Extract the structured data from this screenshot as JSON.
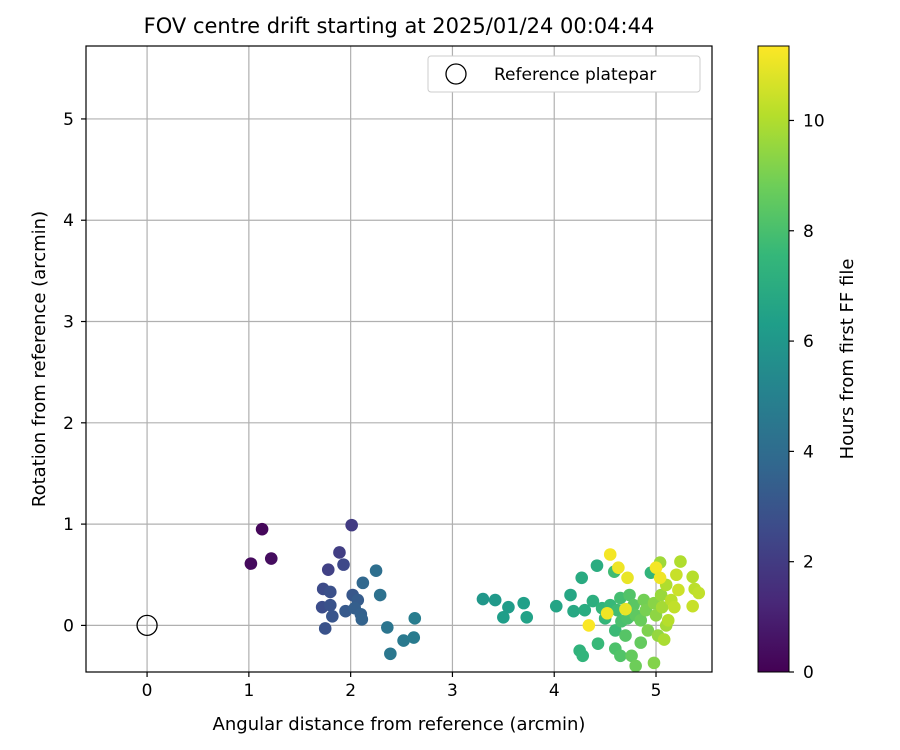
{
  "chart_data": {
    "type": "scatter",
    "title": "FOV centre drift starting at 2025/01/24 00:04:44",
    "xlabel": "Angular distance from reference (arcmin)",
    "ylabel": "Rotation from reference (arcmin)",
    "colorbar_label": "Hours from first FF file",
    "colormap": "viridis",
    "xlim": [
      -0.6,
      5.55
    ],
    "ylim": [
      -0.46,
      5.72
    ],
    "clim": [
      0,
      11.35
    ],
    "x_ticks": [
      0,
      1,
      2,
      3,
      4,
      5
    ],
    "y_ticks": [
      0,
      1,
      2,
      3,
      4,
      5
    ],
    "colorbar_ticks": [
      0,
      2,
      4,
      6,
      8,
      10
    ],
    "grid": true,
    "legend": {
      "position": "top-right",
      "entries": [
        {
          "label": "Reference platepar",
          "marker": "open-circle"
        }
      ]
    },
    "reference_point": {
      "x": 0,
      "y": 0
    },
    "series": [
      {
        "points": [
          [
            1.13,
            0.95,
            0.2
          ],
          [
            1.02,
            0.61,
            0.3
          ],
          [
            1.22,
            0.66,
            0.4
          ],
          [
            2.01,
            0.99,
            2.0
          ],
          [
            1.89,
            0.72,
            2.1
          ],
          [
            1.78,
            0.55,
            2.2
          ],
          [
            1.93,
            0.6,
            2.5
          ],
          [
            1.73,
            0.36,
            2.6
          ],
          [
            1.8,
            0.33,
            2.8
          ],
          [
            1.72,
            0.18,
            2.7
          ],
          [
            1.8,
            0.2,
            2.9
          ],
          [
            1.82,
            0.09,
            3.0
          ],
          [
            1.75,
            -0.03,
            2.9
          ],
          [
            1.95,
            0.14,
            3.2
          ],
          [
            2.02,
            0.3,
            3.1
          ],
          [
            2.07,
            0.25,
            3.3
          ],
          [
            2.04,
            0.17,
            3.4
          ],
          [
            2.1,
            0.11,
            3.5
          ],
          [
            2.11,
            0.06,
            3.6
          ],
          [
            2.12,
            0.42,
            3.8
          ],
          [
            2.25,
            0.54,
            4.1
          ],
          [
            2.29,
            0.3,
            4.2
          ],
          [
            2.36,
            -0.02,
            4.4
          ],
          [
            2.39,
            -0.28,
            4.5
          ],
          [
            2.52,
            -0.15,
            4.6
          ],
          [
            2.62,
            -0.12,
            4.7
          ],
          [
            2.63,
            0.07,
            4.8
          ],
          [
            3.3,
            0.26,
            6.0
          ],
          [
            3.42,
            0.25,
            6.1
          ],
          [
            3.5,
            0.08,
            6.3
          ],
          [
            3.55,
            0.18,
            6.2
          ],
          [
            3.7,
            0.22,
            6.4
          ],
          [
            3.73,
            0.08,
            6.5
          ],
          [
            4.02,
            0.19,
            6.6
          ],
          [
            4.16,
            0.3,
            6.7
          ],
          [
            4.19,
            0.14,
            6.8
          ],
          [
            4.27,
            0.47,
            6.9
          ],
          [
            4.3,
            0.15,
            7.0
          ],
          [
            4.42,
            0.59,
            7.0
          ],
          [
            4.38,
            0.24,
            7.1
          ],
          [
            4.25,
            -0.25,
            7.3
          ],
          [
            4.28,
            -0.3,
            7.4
          ],
          [
            4.43,
            -0.18,
            7.6
          ],
          [
            4.47,
            0.17,
            7.4
          ],
          [
            4.5,
            0.07,
            7.5
          ],
          [
            4.55,
            0.2,
            7.6
          ],
          [
            4.6,
            -0.05,
            7.7
          ],
          [
            4.59,
            0.53,
            7.8
          ],
          [
            4.62,
            0.15,
            7.8
          ],
          [
            4.65,
            0.27,
            7.9
          ],
          [
            4.66,
            0.04,
            8.0
          ],
          [
            4.6,
            -0.23,
            8.1
          ],
          [
            4.65,
            -0.3,
            8.2
          ],
          [
            4.7,
            -0.1,
            8.3
          ],
          [
            4.72,
            0.07,
            8.1
          ],
          [
            4.74,
            0.3,
            8.2
          ],
          [
            4.78,
            0.2,
            8.4
          ],
          [
            4.8,
            0.1,
            8.5
          ],
          [
            4.76,
            -0.3,
            8.6
          ],
          [
            4.8,
            -0.4,
            8.8
          ],
          [
            4.85,
            -0.17,
            8.6
          ],
          [
            4.85,
            0.05,
            8.7
          ],
          [
            4.88,
            0.25,
            8.9
          ],
          [
            4.9,
            0.15,
            9.0
          ],
          [
            4.92,
            -0.05,
            9.1
          ],
          [
            4.95,
            0.52,
            7.4
          ],
          [
            4.98,
            -0.37,
            9.2
          ],
          [
            4.98,
            0.22,
            9.3
          ],
          [
            5.0,
            0.1,
            9.4
          ],
          [
            5.02,
            -0.1,
            9.5
          ],
          [
            5.05,
            0.3,
            9.6
          ],
          [
            5.04,
            0.62,
            9.7
          ],
          [
            5.06,
            0.18,
            9.8
          ],
          [
            5.08,
            -0.14,
            9.9
          ],
          [
            5.1,
            0.0,
            9.8
          ],
          [
            5.1,
            0.4,
            10.0
          ],
          [
            5.12,
            0.05,
            10.1
          ],
          [
            5.15,
            0.25,
            10.2
          ],
          [
            5.18,
            0.18,
            10.3
          ],
          [
            5.2,
            0.5,
            10.4
          ],
          [
            5.22,
            0.35,
            10.5
          ],
          [
            5.24,
            0.63,
            10.0
          ],
          [
            5.36,
            0.48,
            10.1
          ],
          [
            5.38,
            0.36,
            10.2
          ],
          [
            5.42,
            0.32,
            10.3
          ],
          [
            5.36,
            0.19,
            10.4
          ],
          [
            4.55,
            0.7,
            11.2
          ],
          [
            4.63,
            0.57,
            11.1
          ],
          [
            4.72,
            0.47,
            11.0
          ],
          [
            4.7,
            0.16,
            11.0
          ],
          [
            4.52,
            0.12,
            11.1
          ],
          [
            4.34,
            0.0,
            11.3
          ],
          [
            5.0,
            0.57,
            11.2
          ],
          [
            5.04,
            0.47,
            11.1
          ]
        ]
      }
    ]
  }
}
